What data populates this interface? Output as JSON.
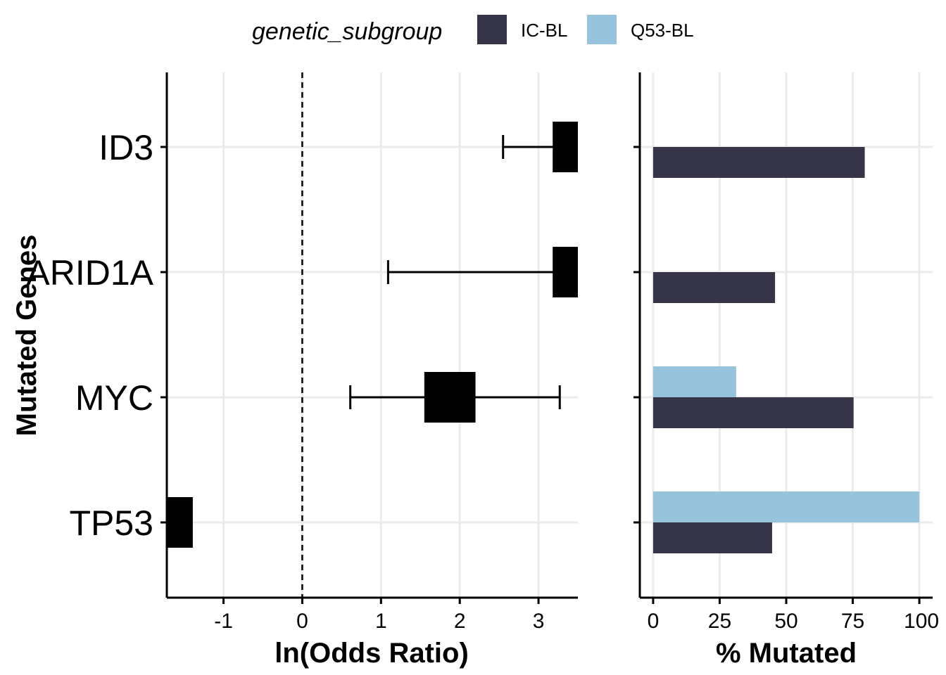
{
  "chart_data": [
    {
      "type": "forest",
      "panel": "left",
      "ylabel": "Mutated Genes",
      "xlabel": "ln(Odds Ratio)",
      "categories": [
        "ID3",
        "ARID1A",
        "MYC",
        "TP53"
      ],
      "xlim": [
        -1.72,
        3.5
      ],
      "xticks": [
        "-1",
        "0",
        "1",
        "2",
        "3"
      ],
      "reference_line": 0,
      "estimates": [
        {
          "gene": "ID3",
          "estimate": 3.33,
          "box_low": 3.18,
          "box_high": 3.5,
          "ci_low": 2.55,
          "ci_high": 3.5
        },
        {
          "gene": "ARID1A",
          "estimate": 3.33,
          "box_low": 3.18,
          "box_high": 3.5,
          "ci_low": 1.09,
          "ci_high": 3.5
        },
        {
          "gene": "MYC",
          "estimate": 1.88,
          "box_low": 1.55,
          "box_high": 2.2,
          "ci_low": 0.61,
          "ci_high": 3.27
        },
        {
          "gene": "TP53",
          "estimate": -1.56,
          "box_low": -1.72,
          "box_high": -1.39,
          "ci_low": -1.72,
          "ci_high": -1.72
        }
      ],
      "grid": true
    },
    {
      "type": "bar",
      "panel": "right",
      "orientation": "horizontal",
      "xlabel": "% Mutated",
      "categories": [
        "ID3",
        "ARID1A",
        "MYC",
        "TP53"
      ],
      "xlim": [
        -5,
        105
      ],
      "xticks": [
        "0",
        "25",
        "50",
        "75",
        "100"
      ],
      "legend_title": "genetic_subgroup",
      "legend_position": "top",
      "series": [
        {
          "name": "IC-BL",
          "color": "#363447",
          "values": [
            79.5,
            45.8,
            75.3,
            44.7
          ]
        },
        {
          "name": "Q53-BL",
          "color": "#97c3dc",
          "values": [
            0,
            0,
            31.2,
            100
          ]
        }
      ],
      "grid": true
    }
  ]
}
